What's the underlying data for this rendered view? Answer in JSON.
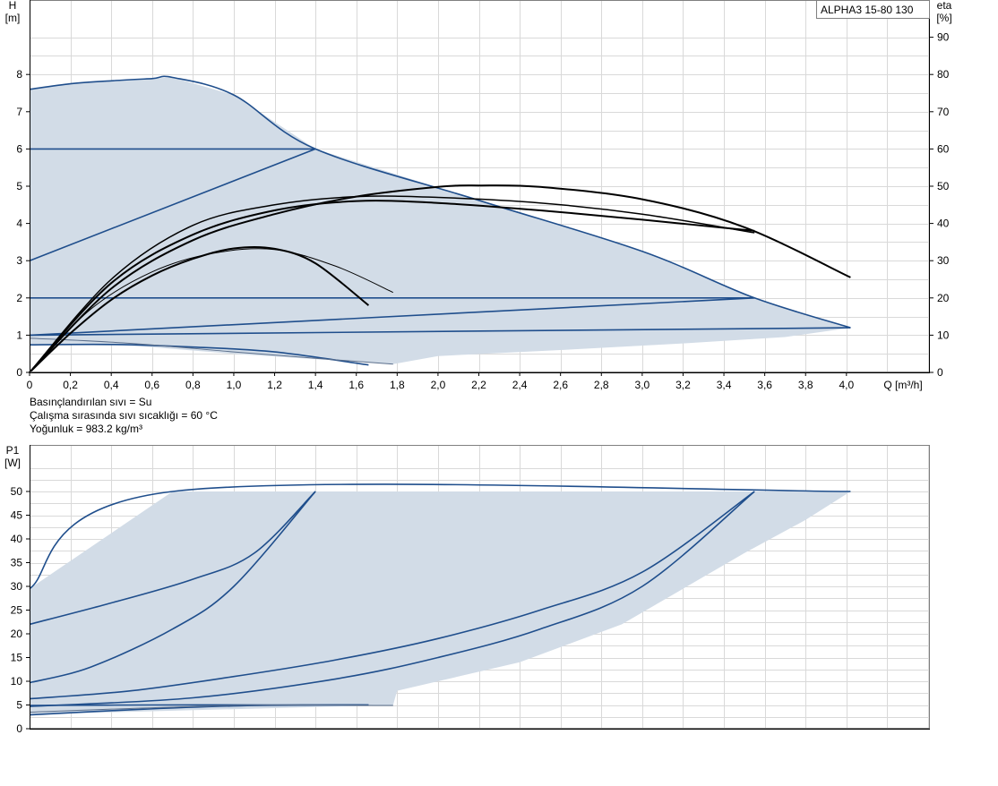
{
  "chart_data": [
    {
      "type": "line",
      "ylabel": "H",
      "yunit": "[m]",
      "y2label": "eta",
      "y2unit": "[%]",
      "xunit": "Q [m³/h]",
      "model_label": "ALPHA3 15-80 130",
      "xlim": [
        0,
        4.4
      ],
      "ylim": [
        0,
        9.6
      ],
      "y2lim": [
        0,
        96
      ],
      "xticks": [
        "0",
        "0,2",
        "0,4",
        "0,6",
        "0,8",
        "1,0",
        "1,2",
        "1,4",
        "1,6",
        "1,8",
        "2,0",
        "2,2",
        "2,4",
        "2,6",
        "2,8",
        "3,0",
        "3,2",
        "3,4",
        "3,6",
        "3,8",
        "4,0"
      ],
      "yticks": [
        "0",
        "1",
        "2",
        "3",
        "4",
        "5",
        "6",
        "7",
        "8"
      ],
      "y2ticks": [
        "0",
        "10",
        "20",
        "30",
        "40",
        "50",
        "60",
        "70",
        "80",
        "90"
      ],
      "notes": [
        "Basınçlandırılan sıvı = Su",
        "Çalışma sırasında sıvı sıcaklığı = 60 °C",
        "Yoğunluk = 983.2 kg/m³"
      ],
      "envelope": [
        [
          0,
          7.6
        ],
        [
          0.2,
          7.75
        ],
        [
          0.4,
          7.83
        ],
        [
          0.6,
          7.89
        ],
        [
          0.7,
          7.92
        ],
        [
          1.0,
          7.45
        ],
        [
          1.4,
          6.0
        ],
        [
          2.2,
          4.62
        ],
        [
          3.0,
          3.25
        ],
        [
          3.55,
          2.0
        ],
        [
          4.02,
          1.2
        ],
        [
          3.7,
          0.95
        ],
        [
          3.2,
          0.78
        ],
        [
          2.6,
          0.6
        ],
        [
          2.0,
          0.44
        ],
        [
          1.78,
          0.22
        ],
        [
          1.0,
          0.5
        ],
        [
          0.5,
          0.72
        ],
        [
          0,
          0.74
        ]
      ],
      "series": [
        {
          "color": "#1f4e8c",
          "width": 1.6,
          "points": [
            [
              0,
              7.6
            ],
            [
              0.2,
              7.75
            ],
            [
              0.4,
              7.83
            ],
            [
              0.6,
              7.89
            ],
            [
              0.7,
              7.92
            ],
            [
              1.0,
              7.45
            ],
            [
              1.4,
              6.0
            ],
            [
              2.2,
              4.62
            ],
            [
              3.0,
              3.25
            ],
            [
              3.55,
              2.0
            ],
            [
              4.02,
              1.2
            ]
          ]
        },
        {
          "color": "#1f4e8c",
          "width": 1.6,
          "points": [
            [
              0,
              6.0
            ],
            [
              1.4,
              6.0
            ]
          ]
        },
        {
          "color": "#1f4e8c",
          "width": 1.6,
          "points": [
            [
              0,
              3.0
            ],
            [
              1.4,
              6.0
            ]
          ]
        },
        {
          "color": "#1f4e8c",
          "width": 1.6,
          "points": [
            [
              0,
              2.0
            ],
            [
              3.55,
              2.0
            ]
          ]
        },
        {
          "color": "#1f4e8c",
          "width": 1.6,
          "points": [
            [
              0,
              1.0
            ],
            [
              3.55,
              2.0
            ]
          ]
        },
        {
          "color": "#1f4e8c",
          "width": 1.6,
          "points": [
            [
              0,
              1.0
            ],
            [
              4.02,
              1.2
            ]
          ]
        },
        {
          "color": "#1f4e8c",
          "width": 1.6,
          "points": [
            [
              0,
              0.74
            ],
            [
              0.4,
              0.75
            ],
            [
              0.8,
              0.68
            ],
            [
              1.2,
              0.55
            ],
            [
              1.66,
              0.2
            ]
          ]
        },
        {
          "color": "#5b6f8c",
          "width": 1.0,
          "points": [
            [
              0,
              0.92
            ],
            [
              0.5,
              0.78
            ],
            [
              1.0,
              0.55
            ],
            [
              1.4,
              0.38
            ],
            [
              1.78,
              0.22
            ]
          ]
        },
        {
          "color": "#000000",
          "width": 2.0,
          "points": [
            [
              0,
              0
            ],
            [
              0.2,
              1.05
            ],
            [
              0.4,
              1.95
            ],
            [
              0.6,
              2.6
            ],
            [
              0.8,
              3.05
            ],
            [
              1.0,
              3.33
            ],
            [
              1.2,
              3.32
            ],
            [
              1.4,
              2.93
            ],
            [
              1.66,
              1.8
            ]
          ]
        },
        {
          "color": "#000000",
          "width": 1.0,
          "points": [
            [
              0,
              0
            ],
            [
              0.3,
              1.7
            ],
            [
              0.6,
              2.7
            ],
            [
              0.9,
              3.2
            ],
            [
              1.2,
              3.3
            ],
            [
              1.5,
              2.85
            ],
            [
              1.78,
              2.15
            ]
          ]
        },
        {
          "color": "#000000",
          "width": 2.0,
          "points": [
            [
              0,
              0
            ],
            [
              0.4,
              2.4
            ],
            [
              0.8,
              3.7
            ],
            [
              1.2,
              4.35
            ],
            [
              1.6,
              4.6
            ],
            [
              2.0,
              4.55
            ],
            [
              2.5,
              4.35
            ],
            [
              3.0,
              4.1
            ],
            [
              3.55,
              3.8
            ]
          ]
        },
        {
          "color": "#000000",
          "width": 1.5,
          "points": [
            [
              0,
              0
            ],
            [
              0.4,
              2.5
            ],
            [
              0.8,
              3.95
            ],
            [
              1.2,
              4.5
            ],
            [
              1.6,
              4.72
            ],
            [
              2.0,
              4.7
            ],
            [
              2.5,
              4.55
            ],
            [
              3.0,
              4.25
            ],
            [
              3.55,
              3.75
            ]
          ]
        },
        {
          "color": "#000000",
          "width": 2.0,
          "points": [
            [
              0,
              0
            ],
            [
              0.4,
              2.25
            ],
            [
              0.8,
              3.55
            ],
            [
              1.2,
              4.25
            ],
            [
              1.6,
              4.72
            ],
            [
              2.0,
              4.98
            ],
            [
              2.2,
              5.02
            ],
            [
              2.5,
              4.98
            ],
            [
              3.0,
              4.65
            ],
            [
              3.5,
              3.9
            ],
            [
              4.02,
              2.55
            ]
          ]
        }
      ]
    },
    {
      "type": "line",
      "ylabel": "P1",
      "yunit": "[W]",
      "xlim": [
        0,
        4.4
      ],
      "ylim": [
        0,
        57
      ],
      "yticks": [
        "0",
        "5",
        "10",
        "15",
        "20",
        "25",
        "30",
        "35",
        "40",
        "45",
        "50"
      ],
      "envelope": [
        [
          0,
          29.5
        ],
        [
          0.7,
          50
        ],
        [
          4.02,
          50
        ],
        [
          3.8,
          44
        ],
        [
          3.5,
          37
        ],
        [
          3.3,
          32
        ],
        [
          2.9,
          22
        ],
        [
          2.4,
          14
        ],
        [
          1.8,
          8
        ],
        [
          1.78,
          5
        ],
        [
          0,
          3
        ]
      ],
      "series": [
        {
          "color": "#1f4e8c",
          "width": 1.6,
          "points": [
            [
              0,
              29.5
            ],
            [
              0.7,
              50
            ],
            [
              4.02,
              50
            ]
          ]
        },
        {
          "color": "#1f4e8c",
          "width": 1.6,
          "points": [
            [
              0,
              22
            ],
            [
              0.4,
              26.5
            ],
            [
              0.8,
              31.5
            ],
            [
              1.1,
              37
            ],
            [
              1.4,
              50
            ]
          ]
        },
        {
          "color": "#1f4e8c",
          "width": 1.6,
          "points": [
            [
              0,
              9.7
            ],
            [
              0.3,
              13
            ],
            [
              0.7,
              21
            ],
            [
              1.0,
              30
            ],
            [
              1.4,
              50
            ]
          ]
        },
        {
          "color": "#1f4e8c",
          "width": 1.6,
          "points": [
            [
              0,
              6.3
            ],
            [
              0.5,
              8
            ],
            [
              1.0,
              11
            ],
            [
              1.5,
              14.5
            ],
            [
              2.0,
              19
            ],
            [
              2.5,
              25
            ],
            [
              3.0,
              33
            ],
            [
              3.55,
              50
            ]
          ]
        },
        {
          "color": "#1f4e8c",
          "width": 1.6,
          "points": [
            [
              0,
              4.7
            ],
            [
              0.8,
              6.5
            ],
            [
              1.5,
              10.5
            ],
            [
              2.0,
              15
            ],
            [
              2.5,
              21
            ],
            [
              3.0,
              30
            ],
            [
              3.55,
              50
            ]
          ]
        },
        {
          "color": "#1f4e8c",
          "width": 1.6,
          "points": [
            [
              0,
              2.9
            ],
            [
              0.5,
              4
            ],
            [
              1.0,
              4.8
            ],
            [
              1.4,
              5.0
            ],
            [
              1.66,
              5.0
            ]
          ]
        },
        {
          "color": "#1f4e8c",
          "width": 1.6,
          "points": [
            [
              0,
              4.9
            ],
            [
              0.6,
              5.0
            ],
            [
              1.2,
              5.0
            ],
            [
              1.66,
              5.0
            ]
          ]
        },
        {
          "color": "#5b6f8c",
          "width": 1.0,
          "points": [
            [
              0,
              3.5
            ],
            [
              1.0,
              4.9
            ],
            [
              1.78,
              4.9
            ]
          ]
        }
      ]
    }
  ]
}
